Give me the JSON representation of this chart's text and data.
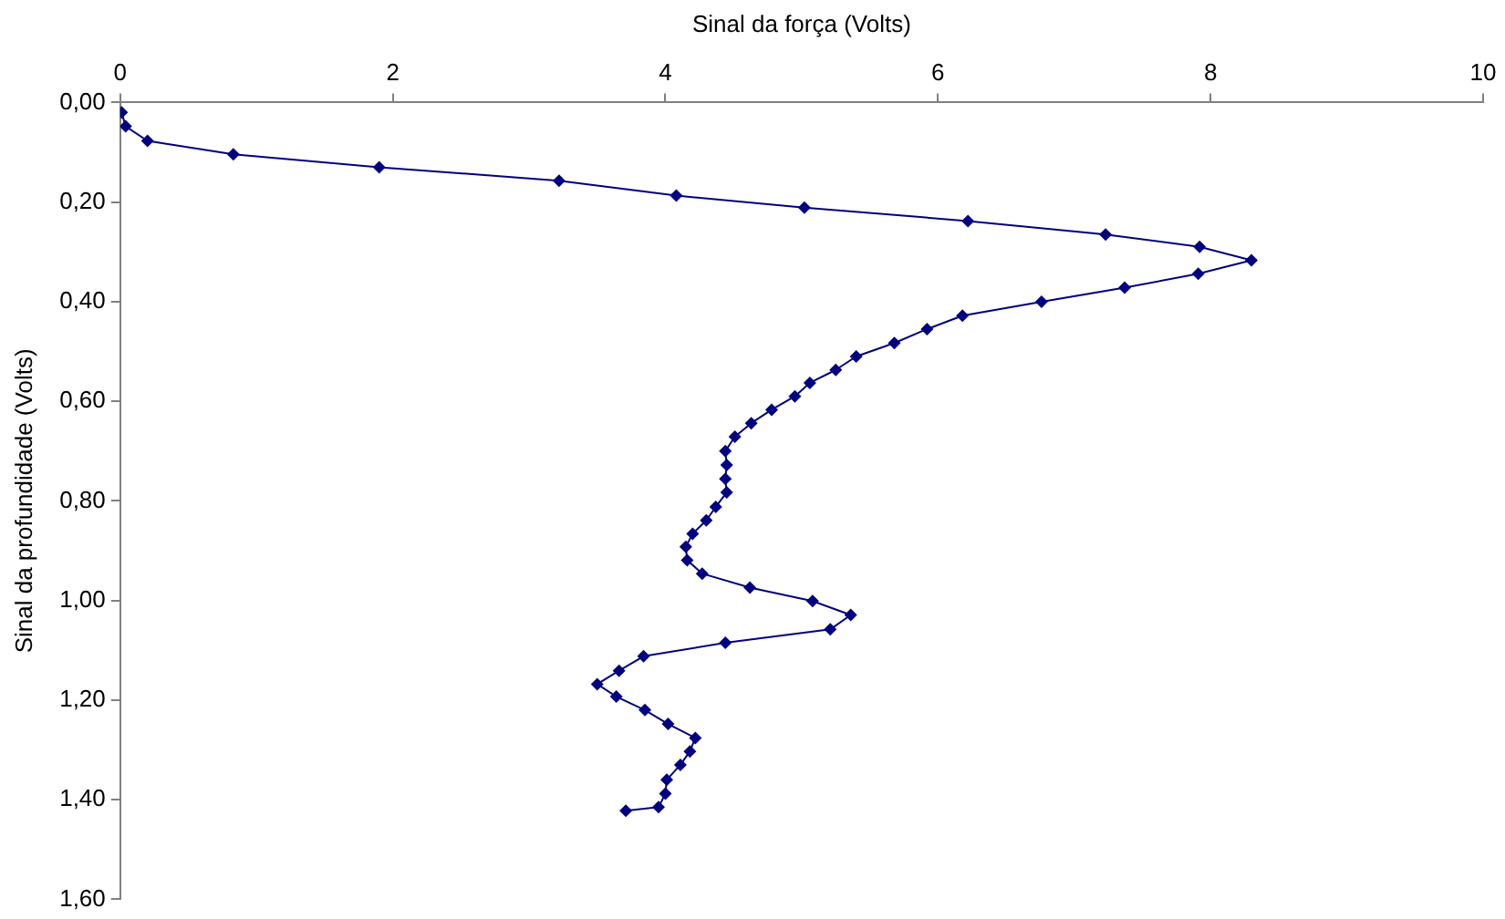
{
  "chart_data": {
    "type": "line",
    "xlabel": "Sinal da força (Volts)",
    "ylabel": "Sinal da profundidade (Volts)",
    "xlim": [
      0,
      10
    ],
    "xticks": [
      0,
      2,
      4,
      6,
      8,
      10
    ],
    "ylim": [
      1.6,
      0
    ],
    "yticks": [
      {
        "value": 0,
        "label": "0,00"
      },
      {
        "value": 0.2,
        "label": "0,20"
      },
      {
        "value": 0.4,
        "label": "0,40"
      },
      {
        "value": 0.6,
        "label": "0,60"
      },
      {
        "value": 0.8,
        "label": "0,80"
      },
      {
        "value": 1.0,
        "label": "1,00"
      },
      {
        "value": 1.2,
        "label": "1,20"
      },
      {
        "value": 1.4,
        "label": "1,40"
      },
      {
        "value": 1.6,
        "label": "1,60"
      }
    ],
    "grid": false,
    "legend": false,
    "marker": "diamond",
    "line_style": "solid",
    "series": [
      {
        "color": "#000080",
        "x": [
          0.01,
          0.04,
          0.2,
          0.83,
          1.9,
          3.22,
          4.08,
          5.02,
          6.22,
          7.23,
          7.92,
          8.3,
          7.91,
          7.37,
          6.76,
          6.18,
          5.92,
          5.68,
          5.4,
          5.25,
          5.06,
          4.95,
          4.78,
          4.63,
          4.51,
          4.44,
          4.45,
          4.44,
          4.45,
          4.37,
          4.3,
          4.2,
          4.15,
          4.16,
          4.27,
          4.62,
          5.08,
          5.36,
          5.21,
          4.44,
          3.84,
          3.66,
          3.5,
          3.64,
          3.85,
          4.02,
          4.22,
          4.18,
          4.11,
          4.01,
          4.0,
          3.95,
          3.71
        ],
        "values": [
          0.02,
          0.048,
          0.077,
          0.104,
          0.13,
          0.157,
          0.187,
          0.211,
          0.238,
          0.265,
          0.29,
          0.317,
          0.344,
          0.372,
          0.4,
          0.428,
          0.455,
          0.483,
          0.51,
          0.537,
          0.563,
          0.59,
          0.617,
          0.644,
          0.671,
          0.7,
          0.728,
          0.756,
          0.783,
          0.812,
          0.839,
          0.866,
          0.892,
          0.919,
          0.946,
          0.974,
          1.001,
          1.029,
          1.058,
          1.085,
          1.112,
          1.141,
          1.168,
          1.193,
          1.22,
          1.248,
          1.276,
          1.303,
          1.33,
          1.36,
          1.388,
          1.415,
          1.422
        ]
      }
    ]
  }
}
